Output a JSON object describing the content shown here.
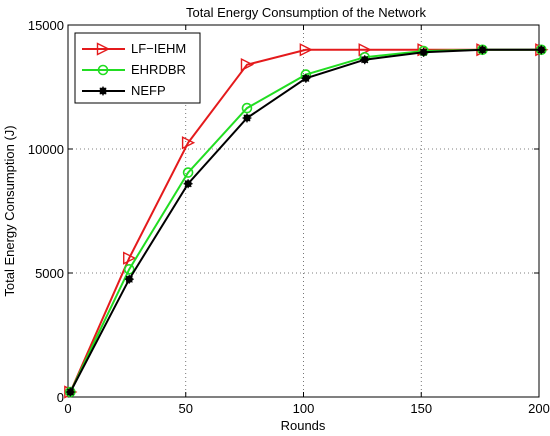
{
  "chart_data": {
    "type": "line",
    "title": "Total Energy Consumption of the Network",
    "xlabel": "Rounds",
    "ylabel": "Total Energy Consumption (J)",
    "xlim": [
      0,
      200
    ],
    "ylim": [
      0,
      15000
    ],
    "xticks": [
      0,
      50,
      100,
      150,
      200
    ],
    "yticks": [
      0,
      5000,
      10000,
      15000
    ],
    "grid": true,
    "legend_position": "top-left",
    "x": [
      1,
      26,
      51,
      76,
      101,
      126,
      151,
      176,
      201
    ],
    "series": [
      {
        "name": "LF−IEHM",
        "color": "#e41a1c",
        "marker": "triangle-right",
        "values": [
          200,
          5600,
          10250,
          13400,
          14000,
          14000,
          14000,
          14000,
          14000
        ]
      },
      {
        "name": "EHRDBR",
        "color": "#22dd22",
        "marker": "circle",
        "values": [
          200,
          5150,
          9050,
          11650,
          13000,
          13700,
          13950,
          14000,
          14000
        ]
      },
      {
        "name": "NEFP",
        "color": "#000000",
        "marker": "star",
        "values": [
          200,
          4750,
          8600,
          11250,
          12850,
          13600,
          13900,
          14000,
          14000
        ]
      }
    ]
  }
}
